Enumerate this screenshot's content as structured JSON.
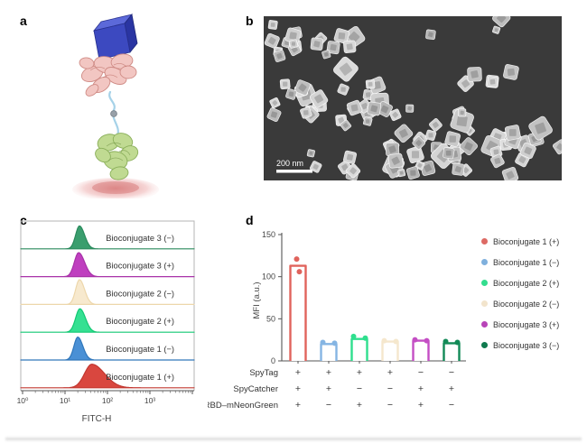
{
  "figure": {
    "panel_a": {
      "letter": "a"
    },
    "panel_b": {
      "letter": "b",
      "scale_bar_label": "200 nm"
    },
    "panel_c": {
      "letter": "c"
    },
    "panel_d": {
      "letter": "d"
    }
  },
  "chart_data": [
    {
      "panel": "c",
      "type": "area",
      "subtype": "flow-cytometry-histograms",
      "xlabel": "FITC-H",
      "x_scale": "log10",
      "x_tick_labels": [
        "10⁰",
        "10¹",
        "10²",
        "10³"
      ],
      "x_range_log10": [
        0,
        4.1
      ],
      "series": [
        {
          "label": "Bioconjugate 3 (−)",
          "fill": "#3a9e6e",
          "line": "#2a8a5c",
          "peak_log10": 1.34,
          "sigma_l": 0.09,
          "sigma_r": 0.12,
          "height_rel": 0.88
        },
        {
          "label": "Bioconjugate 3 (+)",
          "fill": "#bf3fbf",
          "line": "#a832a8",
          "peak_log10": 1.32,
          "sigma_l": 0.1,
          "sigma_r": 0.14,
          "height_rel": 0.92
        },
        {
          "label": "Bioconjugate 2 (−)",
          "fill": "#f7e9ce",
          "line": "#edd7ab",
          "peak_log10": 1.34,
          "sigma_l": 0.09,
          "sigma_r": 0.12,
          "height_rel": 0.95
        },
        {
          "label": "Bioconjugate 2 (+)",
          "fill": "#35e092",
          "line": "#12c873",
          "peak_log10": 1.35,
          "sigma_l": 0.1,
          "sigma_r": 0.13,
          "height_rel": 0.9
        },
        {
          "label": "Bioconjugate 1 (−)",
          "fill": "#4a90d5",
          "line": "#3077bb",
          "peak_log10": 1.3,
          "sigma_l": 0.09,
          "sigma_r": 0.12,
          "height_rel": 0.88
        },
        {
          "label": "Bioconjugate 1 (+)",
          "fill": "#d9473f",
          "line": "#c23831",
          "peak_log10": 1.63,
          "sigma_l": 0.17,
          "sigma_r": 0.3,
          "height_rel": 0.9
        }
      ]
    },
    {
      "panel": "d",
      "type": "bar",
      "ylabel": "MFI (a.u.)",
      "ylim": [
        0,
        150
      ],
      "yticks": [
        0,
        50,
        100,
        150
      ],
      "categories": [
        "Bioconjugate 1 (+)",
        "Bioconjugate 1 (−)",
        "Bioconjugate 2 (+)",
        "Bioconjugate 2 (−)",
        "Bioconjugate 3 (+)",
        "Bioconjugate 3 (−)"
      ],
      "values": [
        113,
        20,
        26,
        23,
        24,
        21
      ],
      "replicate_points": [
        [
          121,
          106
        ],
        [
          22,
          21
        ],
        [
          29,
          27
        ],
        [
          24,
          23
        ],
        [
          25,
          24
        ],
        [
          23,
          22
        ]
      ],
      "colors": [
        "#e0635c",
        "#85b5e3",
        "#2fdf8e",
        "#f5e7cd",
        "#c44ec4",
        "#128a57"
      ],
      "condition_rows": [
        {
          "label": "SpyTag",
          "values": [
            "+",
            "+",
            "+",
            "+",
            "−",
            "−"
          ]
        },
        {
          "label": "SpyCatcher",
          "values": [
            "+",
            "+",
            "−",
            "−",
            "+",
            "+"
          ]
        },
        {
          "label": "RBD–mNeonGreen",
          "values": [
            "+",
            "−",
            "+",
            "−",
            "+",
            "−"
          ]
        }
      ],
      "legend": [
        {
          "label": "Bioconjugate 1 (+)",
          "color": "#dd6a64"
        },
        {
          "label": "Bioconjugate 1 (−)",
          "color": "#7fb0dd"
        },
        {
          "label": "Bioconjugate 2 (+)",
          "color": "#33dd8e"
        },
        {
          "label": "Bioconjugate 2 (−)",
          "color": "#f2e4cc"
        },
        {
          "label": "Bioconjugate 3 (+)",
          "color": "#b844b8"
        },
        {
          "label": "Bioconjugate 3 (−)",
          "color": "#0f7a4e"
        }
      ]
    }
  ]
}
